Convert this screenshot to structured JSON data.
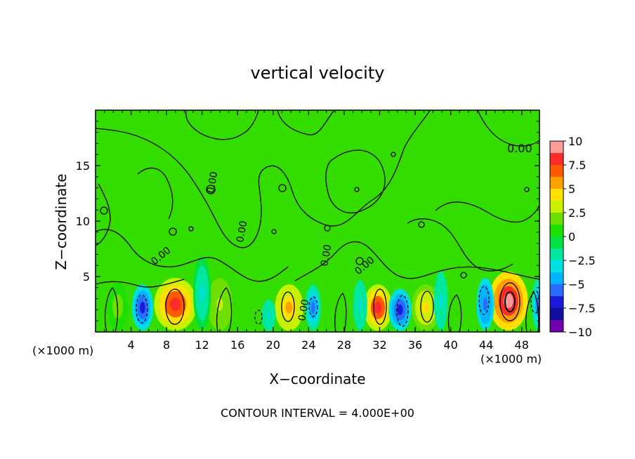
{
  "chart_data": {
    "type": "heatmap",
    "title": "vertical velocity",
    "xlabel": "X−coordinate",
    "ylabel": "Z−coordinate",
    "x_unit": "(×1000 m)",
    "x_unit_right": "(×1000 m)",
    "footer": "CONTOUR INTERVAL = 4.000E+00",
    "xlim": [
      0,
      50
    ],
    "ylim": [
      0,
      20
    ],
    "x_ticks": [
      4,
      8,
      12,
      16,
      20,
      24,
      28,
      32,
      36,
      40,
      44,
      48
    ],
    "x_tick_labels": [
      "4",
      "8",
      "12",
      "16",
      "20",
      "24",
      "28",
      "32",
      "36",
      "40",
      "44",
      "48"
    ],
    "y_ticks": [
      5,
      10,
      15
    ],
    "y_tick_labels": [
      "5",
      "10",
      "15"
    ],
    "colorbar": {
      "range": [
        -10,
        10
      ],
      "tick_labels": [
        "10",
        "7.5",
        "5",
        "2.5",
        "0",
        "−2.5",
        "−5",
        "−7.5",
        "−10"
      ],
      "colors": [
        "#ff9a9a",
        "#ff2a2a",
        "#ff5a00",
        "#ffa000",
        "#ffe000",
        "#c8f000",
        "#6ee000",
        "#1ee000",
        "#00e040",
        "#00e8a0",
        "#00e0e0",
        "#00b4ff",
        "#2a6cff",
        "#1a1ad8",
        "#1010a0",
        "#7000b0"
      ]
    },
    "contour_labels": [
      "0.00"
    ],
    "cells": [
      {
        "x": 9.0,
        "z": 2.5,
        "w": 2.4,
        "value": 8.0
      },
      {
        "x": 21.8,
        "z": 2.2,
        "w": 1.6,
        "value": 6.0
      },
      {
        "x": 31.8,
        "z": 2.2,
        "w": 1.6,
        "value": 8.0
      },
      {
        "x": 37.2,
        "z": 2.2,
        "w": 1.6,
        "value": 4.5
      },
      {
        "x": 46.5,
        "z": 2.8,
        "w": 2.2,
        "value": 9.5
      },
      {
        "x": 2.5,
        "z": 2.3,
        "w": 1.2,
        "value": 2.0
      },
      {
        "x": 14.0,
        "z": 2.5,
        "w": 1.4,
        "value": 3.0
      },
      {
        "x": 5.3,
        "z": 2.2,
        "w": 1.2,
        "value": -6.5
      },
      {
        "x": 24.5,
        "z": 2.2,
        "w": 0.9,
        "value": -5.0
      },
      {
        "x": 34.3,
        "z": 2.0,
        "w": 1.3,
        "value": -7.0
      },
      {
        "x": 43.9,
        "z": 2.5,
        "w": 1.0,
        "value": -6.0
      },
      {
        "x": 49.9,
        "z": 2.5,
        "w": 0.8,
        "value": -5.5
      },
      {
        "x": 12.0,
        "z": 3.5,
        "w": 1.0,
        "value": -2.5
      },
      {
        "x": 19.5,
        "z": 1.5,
        "w": 0.8,
        "value": -3.0
      },
      {
        "x": 29.8,
        "z": 2.4,
        "w": 0.8,
        "value": -3.0
      },
      {
        "x": 38.9,
        "z": 2.8,
        "w": 0.8,
        "value": -3.0
      }
    ]
  }
}
